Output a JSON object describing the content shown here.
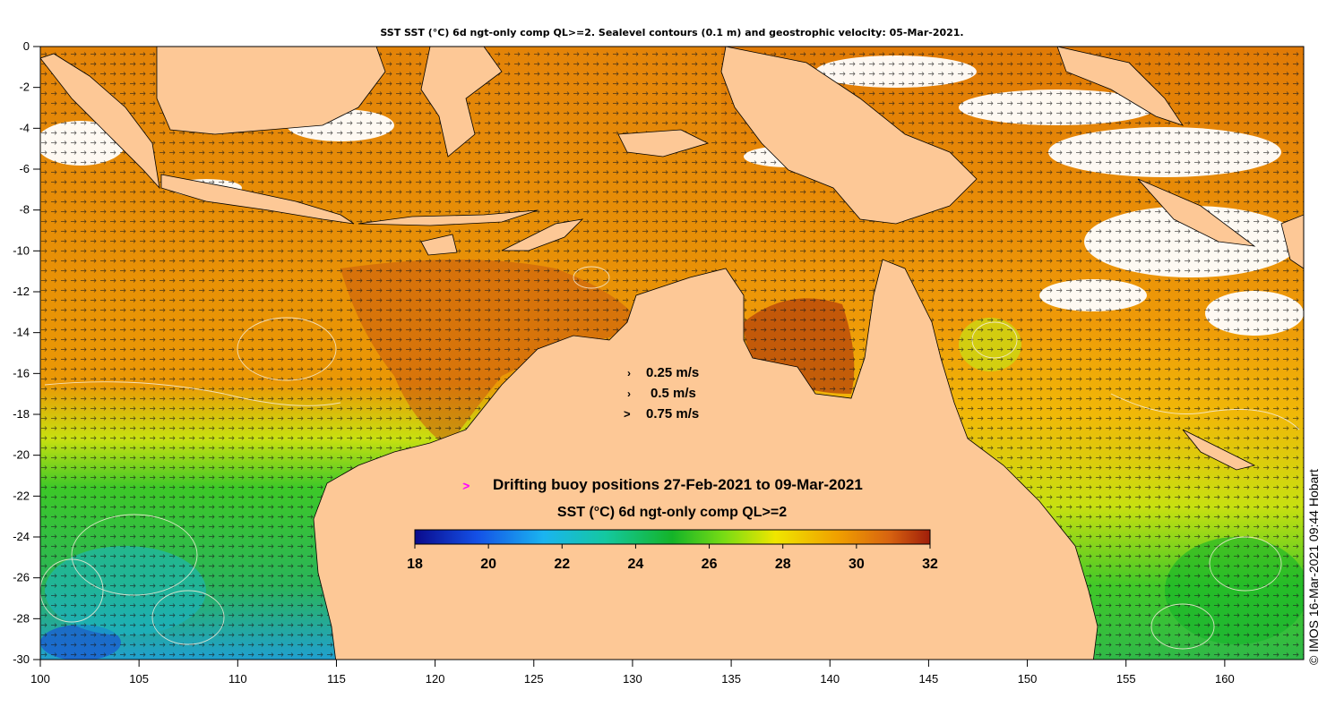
{
  "title": "SST SST (°C) 6d ngt-only comp QL>=2. Sealevel contours (0.1 m) and geostrophic velocity: 05-Mar-2021.",
  "axes": {
    "x_ticks": [
      "100",
      "105",
      "110",
      "115",
      "120",
      "125",
      "130",
      "135",
      "140",
      "145",
      "150",
      "155",
      "160"
    ],
    "y_ticks": [
      "0",
      "-2",
      "-4",
      "-6",
      "-8",
      "-10",
      "-12",
      "-14",
      "-16",
      "-18",
      "-20",
      "-22",
      "-24",
      "-26",
      "-28",
      "-30"
    ],
    "lon_range": [
      100,
      164
    ],
    "lat_range": [
      -30,
      0
    ]
  },
  "velocity_legend": {
    "items": [
      {
        "glyph": "›",
        "label": "0.25 m/s"
      },
      {
        "glyph": "›",
        "label": "0.5 m/s"
      },
      {
        "glyph": ">",
        "label": "0.75 m/s"
      }
    ]
  },
  "buoy_legend": {
    "glyph": ">",
    "label": "Drifting buoy positions 27-Feb-2021 to 09-Mar-2021",
    "color": "#ff00ff"
  },
  "colorbar": {
    "title": "SST (°C) 6d ngt-only comp QL>=2",
    "ticks": [
      "18",
      "20",
      "22",
      "24",
      "26",
      "28",
      "30",
      "32"
    ],
    "range": [
      18,
      32
    ]
  },
  "credit": "© IMOS 16-Mar-2021 09:44 Hobart",
  "colors": {
    "land": "#fdc896",
    "ocean_warm": "#e07b05",
    "ocean_hot": "#b94a10",
    "ocean_mid": "#f0a000",
    "ocean_yellow": "#d8e000",
    "ocean_green": "#33c81e",
    "ocean_cool": "#1aa8c8",
    "cloud": "#ffffff"
  }
}
